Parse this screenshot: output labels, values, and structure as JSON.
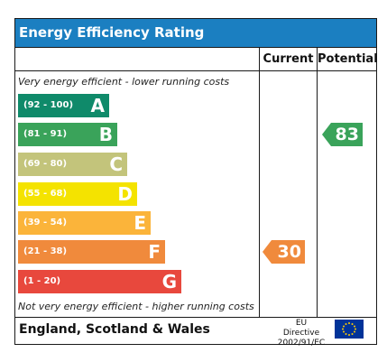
{
  "title": "Energy Efficiency Rating",
  "columns": {
    "current": "Current",
    "potential": "Potential"
  },
  "notes": {
    "top": "Very energy efficient - lower running costs",
    "bottom": "Not very energy efficient - higher running costs"
  },
  "bands": [
    {
      "range": "(92 - 100)",
      "letter": "A",
      "color": "#0f8a6a"
    },
    {
      "range": "(81 - 91)",
      "letter": "B",
      "color": "#3aa35a"
    },
    {
      "range": "(69 - 80)",
      "letter": "C",
      "color": "#c3c47b"
    },
    {
      "range": "(55 - 68)",
      "letter": "D",
      "color": "#f4e300"
    },
    {
      "range": "(39 - 54)",
      "letter": "E",
      "color": "#fbb43a"
    },
    {
      "range": "(21 - 38)",
      "letter": "F",
      "color": "#f08a3c"
    },
    {
      "range": "(1 - 20)",
      "letter": "G",
      "color": "#e8483d"
    }
  ],
  "current": {
    "value": "30",
    "band": "F",
    "color": "#f08a3c"
  },
  "potential": {
    "value": "83",
    "band": "B",
    "color": "#3aa35a"
  },
  "footer": {
    "region": "England, Scotland & Wales",
    "directive_line1": "EU Directive",
    "directive_line2": "2002/91/EC"
  },
  "flag_icon": "eu-flag-icon"
}
